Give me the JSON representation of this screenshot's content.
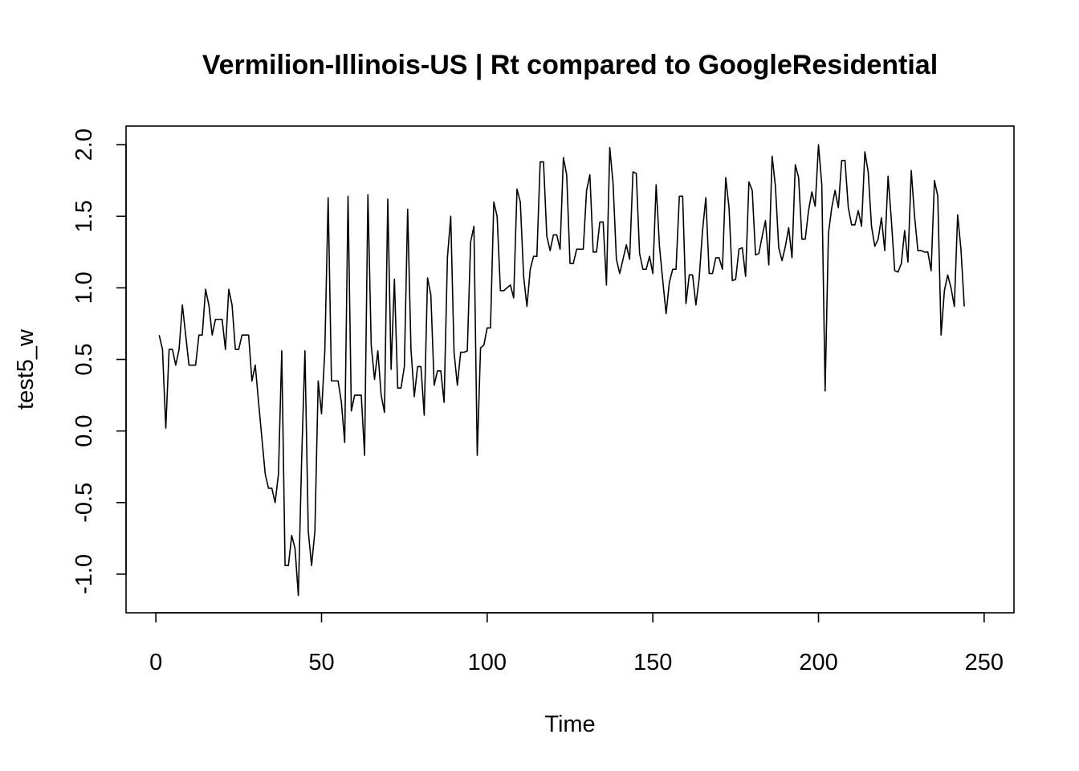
{
  "chart_data": {
    "type": "line",
    "title": "Vermilion-Illinois-US | Rt compared to GoogleResidential",
    "xlabel": "Time",
    "ylabel": "test5_w",
    "xlim": [
      -9,
      259
    ],
    "ylim": [
      -1.27,
      2.13
    ],
    "xticks": [
      0,
      50,
      100,
      150,
      200,
      250
    ],
    "xtick_labels": [
      "0",
      "50",
      "100",
      "150",
      "200",
      "250"
    ],
    "yticks": [
      -1.0,
      -0.5,
      0.0,
      0.5,
      1.0,
      1.5,
      2.0
    ],
    "ytick_labels": [
      "-1.0",
      "-0.5",
      "0.0",
      "0.5",
      "1.0",
      "1.5",
      "2.0"
    ],
    "grid": false,
    "series": [
      {
        "color": "#000000",
        "x_start": 1,
        "values": [
          0.67,
          0.57,
          0.02,
          0.57,
          0.57,
          0.46,
          0.57,
          0.88,
          0.67,
          0.46,
          0.46,
          0.46,
          0.67,
          0.67,
          0.99,
          0.88,
          0.67,
          0.78,
          0.78,
          0.78,
          0.57,
          0.99,
          0.88,
          0.57,
          0.57,
          0.67,
          0.67,
          0.67,
          0.35,
          0.46,
          0.2,
          -0.05,
          -0.3,
          -0.4,
          -0.4,
          -0.5,
          -0.3,
          0.56,
          -0.94,
          -0.94,
          -0.73,
          -0.82,
          -1.15,
          -0.2,
          0.56,
          -0.7,
          -0.94,
          -0.7,
          0.35,
          0.12,
          0.56,
          1.63,
          0.35,
          0.35,
          0.35,
          0.2,
          -0.08,
          1.64,
          0.14,
          0.25,
          0.25,
          0.25,
          -0.17,
          1.65,
          0.6,
          0.36,
          0.56,
          0.25,
          0.13,
          1.62,
          0.43,
          1.06,
          0.3,
          0.3,
          0.45,
          1.55,
          0.57,
          0.24,
          0.45,
          0.45,
          0.11,
          1.07,
          0.95,
          0.32,
          0.42,
          0.42,
          0.2,
          1.21,
          1.5,
          0.55,
          0.32,
          0.55,
          0.55,
          0.56,
          1.32,
          1.43,
          -0.17,
          0.58,
          0.6,
          0.72,
          0.72,
          1.6,
          1.5,
          0.98,
          0.98,
          1.0,
          1.02,
          0.93,
          1.69,
          1.6,
          1.08,
          0.87,
          1.13,
          1.22,
          1.22,
          1.88,
          1.88,
          1.36,
          1.26,
          1.37,
          1.37,
          1.27,
          1.91,
          1.79,
          1.17,
          1.17,
          1.27,
          1.27,
          1.27,
          1.68,
          1.79,
          1.25,
          1.25,
          1.46,
          1.46,
          1.02,
          1.98,
          1.73,
          1.2,
          1.1,
          1.2,
          1.3,
          1.2,
          1.81,
          1.8,
          1.24,
          1.13,
          1.13,
          1.22,
          1.1,
          1.72,
          1.29,
          1.05,
          0.82,
          1.04,
          1.13,
          1.13,
          1.64,
          1.64,
          0.89,
          1.09,
          1.09,
          0.88,
          1.07,
          1.4,
          1.63,
          1.1,
          1.1,
          1.21,
          1.21,
          1.13,
          1.77,
          1.56,
          1.05,
          1.06,
          1.27,
          1.28,
          1.08,
          1.74,
          1.68,
          1.23,
          1.24,
          1.36,
          1.47,
          1.16,
          1.92,
          1.71,
          1.28,
          1.19,
          1.29,
          1.42,
          1.21,
          1.86,
          1.77,
          1.34,
          1.34,
          1.54,
          1.67,
          1.57,
          2.0,
          1.72,
          0.28,
          1.38,
          1.56,
          1.68,
          1.56,
          1.89,
          1.89,
          1.56,
          1.44,
          1.44,
          1.54,
          1.43,
          1.95,
          1.81,
          1.43,
          1.29,
          1.34,
          1.49,
          1.26,
          1.78,
          1.47,
          1.12,
          1.11,
          1.17,
          1.4,
          1.18,
          1.82,
          1.5,
          1.26,
          1.26,
          1.25,
          1.25,
          1.12,
          1.75,
          1.64,
          0.67,
          0.98,
          1.09,
          1.0,
          0.87,
          1.51,
          1.27,
          0.87
        ]
      }
    ]
  }
}
